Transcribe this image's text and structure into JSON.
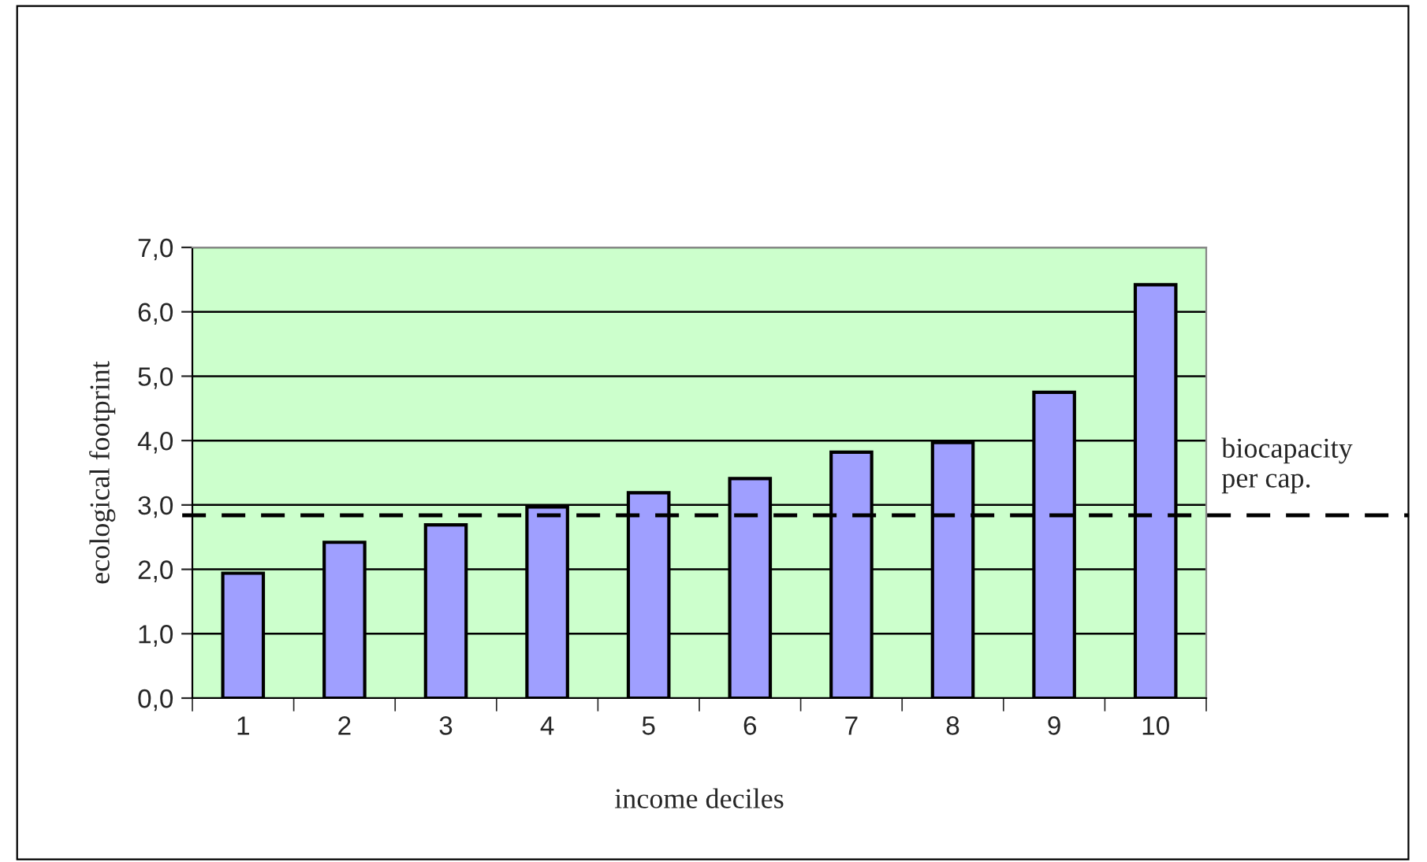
{
  "chart_data": {
    "type": "bar",
    "xlabel": "income deciles",
    "ylabel": "ecological footprint",
    "categories": [
      "1",
      "2",
      "3",
      "4",
      "5",
      "6",
      "7",
      "8",
      "9",
      "10"
    ],
    "values": [
      1.94,
      2.42,
      2.69,
      2.97,
      3.19,
      3.41,
      3.82,
      3.97,
      4.75,
      6.42
    ],
    "color": "#9f9fff",
    "ylim": [
      0,
      7
    ],
    "yticks": [
      {
        "value": 0,
        "label": "0,0"
      },
      {
        "value": 1,
        "label": "1,0"
      },
      {
        "value": 2,
        "label": "2,0"
      },
      {
        "value": 3,
        "label": "3,0"
      },
      {
        "value": 4,
        "label": "4,0"
      },
      {
        "value": 5,
        "label": "5,0"
      },
      {
        "value": 6,
        "label": "6,0"
      },
      {
        "value": 7,
        "label": "7,0"
      }
    ],
    "grid": "y",
    "ref_lines": [
      {
        "axis": "y",
        "value": 2.84,
        "label": "biocapacity\nper cap.",
        "color": "#000000",
        "line_style": "dashed"
      }
    ]
  }
}
